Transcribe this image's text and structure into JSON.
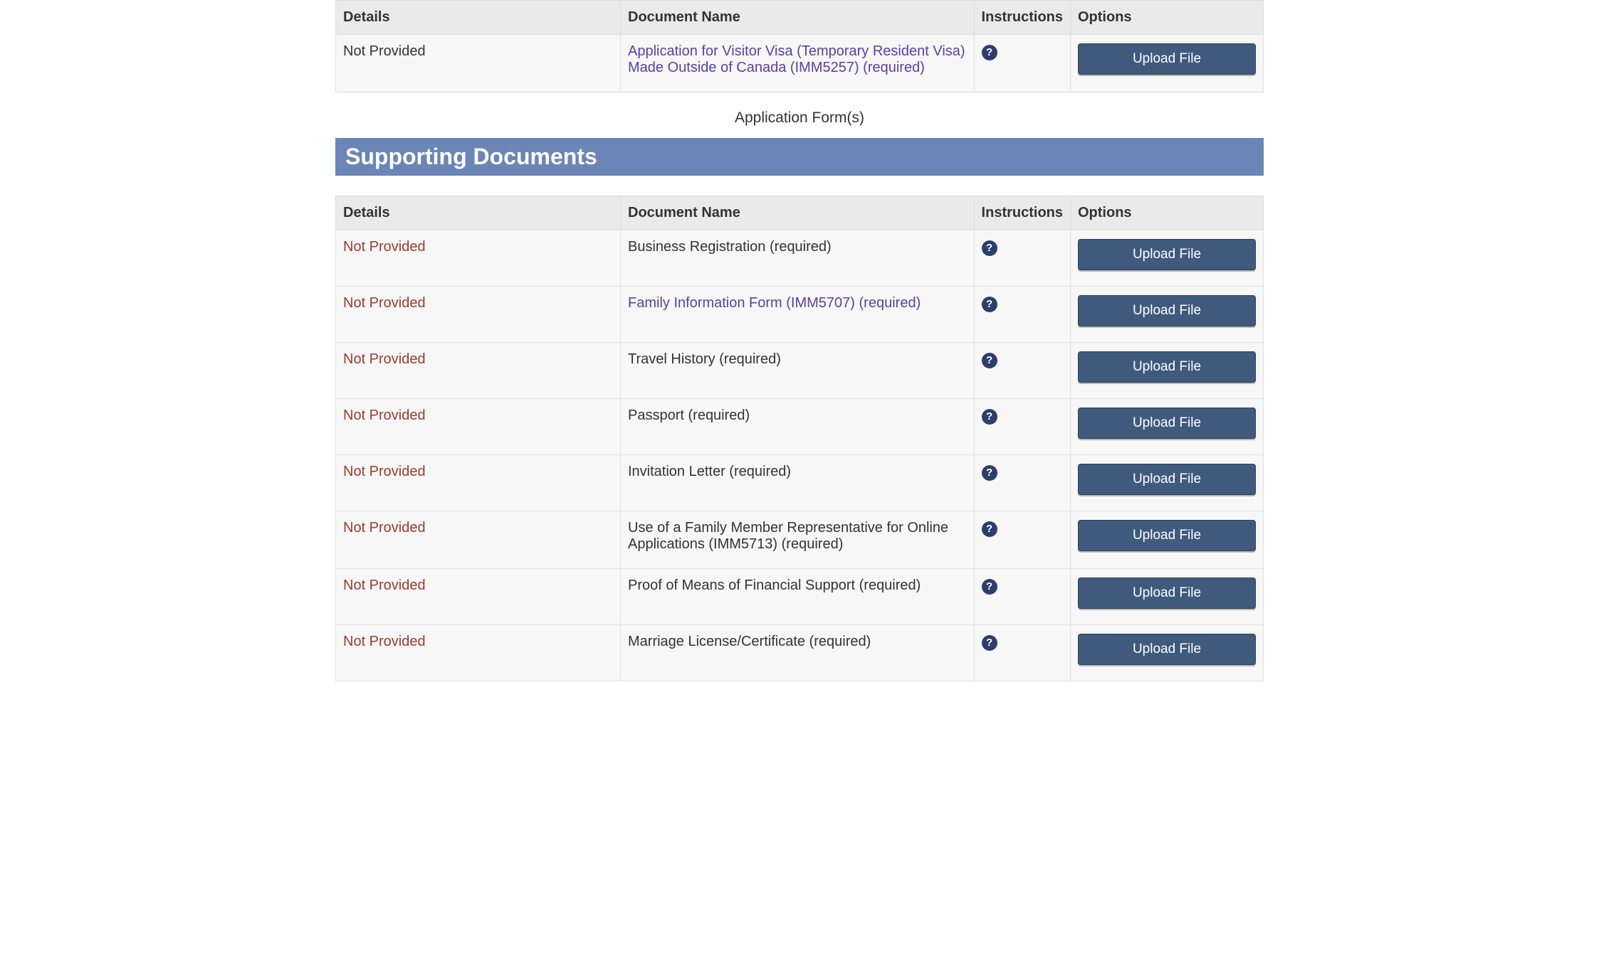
{
  "labels": {
    "upload_button": "Upload File",
    "required_suffix": "  (required)"
  },
  "columns": {
    "details": "Details",
    "document_name": "Document Name",
    "instructions": "Instructions",
    "options": "Options"
  },
  "application_forms": {
    "caption": "Application Form(s)",
    "rows": [
      {
        "status": "Not Provided",
        "status_style": "plain",
        "name": "Application for Visitor Visa (Temporary Resident Visa) Made Outside of Canada (IMM5257)",
        "is_link": true,
        "required": true
      }
    ]
  },
  "supporting_documents": {
    "title": "Supporting Documents",
    "rows": [
      {
        "status": "Not Provided",
        "status_style": "warn",
        "name": "Business Registration",
        "is_link": false,
        "required": true
      },
      {
        "status": "Not Provided",
        "status_style": "warn",
        "name": "Family Information Form (IMM5707)",
        "is_link": true,
        "required": true
      },
      {
        "status": "Not Provided",
        "status_style": "warn",
        "name": "Travel History",
        "is_link": false,
        "required": true
      },
      {
        "status": "Not Provided",
        "status_style": "warn",
        "name": "Passport",
        "is_link": false,
        "required": true
      },
      {
        "status": "Not Provided",
        "status_style": "warn",
        "name": "Invitation Letter",
        "is_link": false,
        "required": true
      },
      {
        "status": "Not Provided",
        "status_style": "warn",
        "name": "Use of a Family Member Representative for Online Applications (IMM5713)",
        "is_link": false,
        "required": true
      },
      {
        "status": "Not Provided",
        "status_style": "warn",
        "name": "Proof of Means of Financial Support",
        "is_link": false,
        "required": true
      },
      {
        "status": "Not Provided",
        "status_style": "warn",
        "name": "Marriage License/Certificate",
        "is_link": false,
        "required": true
      }
    ]
  },
  "style": {
    "banner_bg": "#6a85b6",
    "banner_fg": "#ffffff",
    "button_bg": "#3f5a7d",
    "button_fg": "#ffffff",
    "help_icon_bg": "#2c3e6b",
    "help_icon_fg": "#ffffff",
    "link_color": "#5a3fa3",
    "status_warn_color": "#9a3b2e",
    "header_bg": "#eaeaea",
    "row_bg": "#f7f7f7",
    "border_color": "#e1e1e1"
  }
}
